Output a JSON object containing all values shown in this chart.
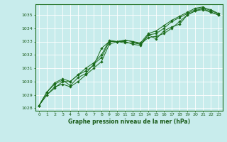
{
  "title": "Graphe pression niveau de la mer (hPa)",
  "bg_color": "#c8ecec",
  "grid_color": "#ffffff",
  "line_color": "#1a6b1a",
  "text_color": "#1a5c1a",
  "xlim": [
    -0.5,
    23.5
  ],
  "ylim": [
    1027.8,
    1035.8
  ],
  "yticks": [
    1028,
    1029,
    1030,
    1031,
    1032,
    1033,
    1034,
    1035
  ],
  "xticks": [
    0,
    1,
    2,
    3,
    4,
    5,
    6,
    7,
    8,
    9,
    10,
    11,
    12,
    13,
    14,
    15,
    16,
    17,
    18,
    19,
    20,
    21,
    22,
    23
  ],
  "series": [
    [
      1028.2,
      1029.0,
      1029.6,
      1029.8,
      1029.6,
      1030.0,
      1030.5,
      1031.0,
      1031.5,
      1032.8,
      1033.0,
      1033.0,
      1032.8,
      1032.7,
      1033.5,
      1033.2,
      1033.8,
      1034.1,
      1034.3,
      1035.0,
      1035.3,
      1035.4,
      1035.2,
      1035.0
    ],
    [
      1028.2,
      1029.0,
      1029.5,
      1030.0,
      1030.0,
      1030.5,
      1030.8,
      1031.2,
      1032.5,
      1033.0,
      1033.0,
      1033.1,
      1033.0,
      1032.8,
      1033.3,
      1033.4,
      1033.6,
      1034.0,
      1034.5,
      1035.0,
      1035.3,
      1035.5,
      1035.4,
      1035.1
    ],
    [
      1028.2,
      1029.2,
      1029.8,
      1030.1,
      1029.7,
      1030.3,
      1030.6,
      1031.3,
      1031.8,
      1033.0,
      1033.0,
      1032.9,
      1032.9,
      1032.8,
      1033.5,
      1033.6,
      1034.0,
      1034.5,
      1034.8,
      1035.1,
      1035.4,
      1035.5,
      1035.2,
      1035.0
    ],
    [
      1028.2,
      1029.2,
      1029.9,
      1030.2,
      1030.0,
      1030.5,
      1031.0,
      1031.4,
      1032.0,
      1033.1,
      1033.0,
      1033.1,
      1033.0,
      1032.9,
      1033.6,
      1033.8,
      1034.2,
      1034.6,
      1034.9,
      1035.2,
      1035.5,
      1035.6,
      1035.3,
      1035.1
    ]
  ]
}
